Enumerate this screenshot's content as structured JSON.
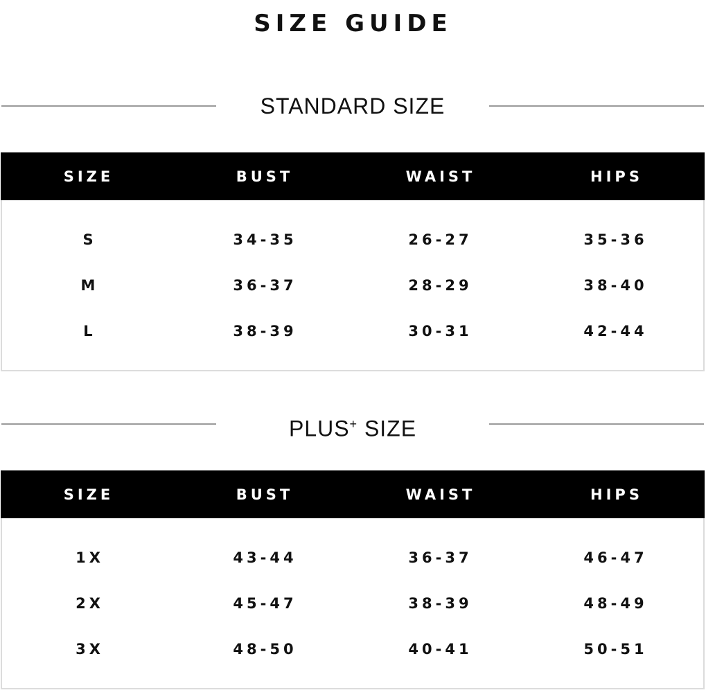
{
  "title": "SIZE GUIDE",
  "columns": [
    "SIZE",
    "BUST",
    "WAIST",
    "HIPS"
  ],
  "standard": {
    "label": "STANDARD SIZE",
    "rows": [
      [
        "S",
        "34-35",
        "26-27",
        "35-36"
      ],
      [
        "M",
        "36-37",
        "28-29",
        "38-40"
      ],
      [
        "L",
        "38-39",
        "30-31",
        "42-44"
      ]
    ]
  },
  "plus": {
    "label": "PLUS",
    "label_sup": "+",
    "label_suffix": " SIZE",
    "rows": [
      [
        "1X",
        "43-44",
        "36-37",
        "46-47"
      ],
      [
        "2X",
        "45-47",
        "38-39",
        "48-49"
      ],
      [
        "3X",
        "48-50",
        "40-41",
        "50-51"
      ]
    ]
  }
}
